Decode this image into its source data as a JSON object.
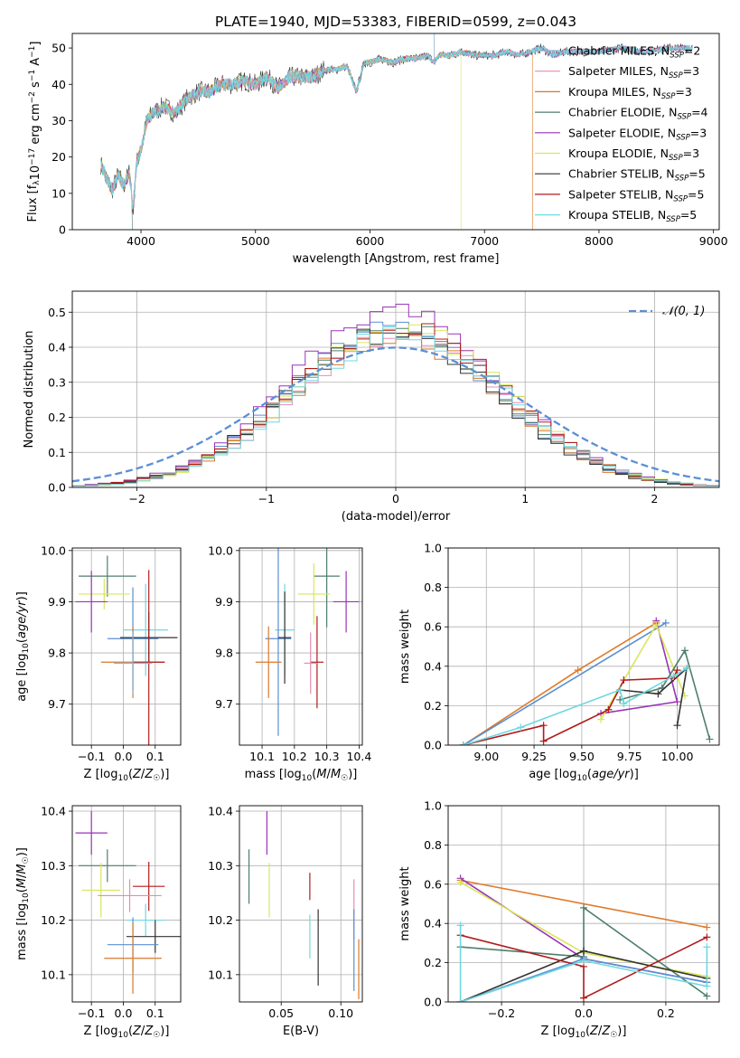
{
  "figure": {
    "title": "PLATE=1940, MJD=53383, FIBERID=0599, z=0.043"
  },
  "colors": {
    "Chabrier MILES": "#8ab0d0",
    "Salpeter MILES": "#e58cb2",
    "Kroupa MILES": "#d9782a",
    "Chabrier ELODIE": "#4f7f6c",
    "Salpeter ELODIE": "#9a33b5",
    "Kroupa ELODIE": "#d9e65a",
    "Chabrier STELIB": "#333333",
    "Salpeter STELIB": "#b01c1c",
    "Kroupa STELIB": "#6fd8e0",
    "Kroupa MILES line": "#e07a2a",
    "Chabrier MILES alt": "#5a8fd0",
    "gaussian": "#5b8fd6"
  },
  "chart_data": [
    {
      "id": "spectrum",
      "type": "line",
      "xlabel": "wavelength [Angstrom, rest frame]",
      "ylabel": "Flux [f_λ 10^-17 erg cm^-2 s^-1 A^-1]",
      "xlim": [
        3400,
        9050
      ],
      "ylim": [
        0,
        54
      ],
      "xticks": [
        4000,
        5000,
        6000,
        7000,
        8000,
        9000
      ],
      "yticks": [
        0,
        10,
        20,
        30,
        40,
        50
      ],
      "grid": false,
      "legend_position": "right",
      "legend": [
        {
          "label": "Chabrier MILES, N_SSP=2",
          "color_key": "Chabrier MILES"
        },
        {
          "label": "Salpeter MILES, N_SSP=3",
          "color_key": "Salpeter MILES"
        },
        {
          "label": "Kroupa MILES, N_SSP=3",
          "color_key": "Kroupa MILES"
        },
        {
          "label": "Chabrier ELODIE, N_SSP=4",
          "color_key": "Chabrier ELODIE"
        },
        {
          "label": "Salpeter ELODIE, N_SSP=3",
          "color_key": "Salpeter ELODIE"
        },
        {
          "label": "Kroupa ELODIE, N_SSP=3",
          "color_key": "Kroupa ELODIE"
        },
        {
          "label": "Chabrier STELIB, N_SSP=5",
          "color_key": "Chabrier STELIB"
        },
        {
          "label": "Salpeter STELIB, N_SSP=5",
          "color_key": "Salpeter STELIB"
        },
        {
          "label": "Kroupa STELIB, N_SSP=5",
          "color_key": "Kroupa STELIB"
        }
      ],
      "continuum": [
        [
          3650,
          18
        ],
        [
          3700,
          14
        ],
        [
          3750,
          11
        ],
        [
          3800,
          15
        ],
        [
          3850,
          12
        ],
        [
          3900,
          16
        ],
        [
          3930,
          5
        ],
        [
          3960,
          18
        ],
        [
          4000,
          22
        ],
        [
          4050,
          30
        ],
        [
          4100,
          32
        ],
        [
          4200,
          34
        ],
        [
          4300,
          32
        ],
        [
          4400,
          36
        ],
        [
          4500,
          38
        ],
        [
          4600,
          38
        ],
        [
          4700,
          40
        ],
        [
          4800,
          40
        ],
        [
          4900,
          41
        ],
        [
          5000,
          40
        ],
        [
          5100,
          42
        ],
        [
          5200,
          39
        ],
        [
          5300,
          42
        ],
        [
          5400,
          42
        ],
        [
          5500,
          42
        ],
        [
          5600,
          44
        ],
        [
          5700,
          44
        ],
        [
          5800,
          45
        ],
        [
          5880,
          38
        ],
        [
          5950,
          46
        ],
        [
          6000,
          46
        ],
        [
          6100,
          47
        ],
        [
          6200,
          46
        ],
        [
          6300,
          47
        ],
        [
          6400,
          47
        ],
        [
          6500,
          48
        ],
        [
          6560,
          46
        ],
        [
          6600,
          48
        ],
        [
          6700,
          48
        ],
        [
          6800,
          49
        ],
        [
          6900,
          48
        ],
        [
          7000,
          48
        ],
        [
          7100,
          48
        ],
        [
          7200,
          49
        ],
        [
          7300,
          48
        ],
        [
          7400,
          49
        ],
        [
          7500,
          50
        ],
        [
          7600,
          48
        ],
        [
          7700,
          49
        ],
        [
          7800,
          49
        ],
        [
          7900,
          49
        ],
        [
          8000,
          49
        ],
        [
          8200,
          50
        ],
        [
          8400,
          49
        ],
        [
          8600,
          50
        ],
        [
          8800,
          50
        ]
      ],
      "truncations": [
        {
          "color_key": "Chabrier ELODIE",
          "x": 3925
        },
        {
          "color_key": "Kroupa ELODIE",
          "x": 6795
        },
        {
          "color_key": "Kroupa MILES",
          "x": 7420
        }
      ]
    },
    {
      "id": "residual-histogram",
      "type": "histogram",
      "xlabel": "(data-model)/error",
      "ylabel": "Normed distribution",
      "xlim": [
        -2.5,
        2.5
      ],
      "ylim": [
        0,
        0.56
      ],
      "xticks": [
        -2,
        -1,
        0,
        1,
        2
      ],
      "yticks": [
        0.0,
        0.1,
        0.2,
        0.3,
        0.4,
        0.5
      ],
      "grid": true,
      "legend_position": "upper right",
      "legend": [
        {
          "label": "𝒩(0, 1)",
          "color_key": "gaussian",
          "style": "dashed"
        }
      ],
      "bin_width": 0.1,
      "series": [
        {
          "color_key": "Chabrier MILES alt",
          "peak": 0.47,
          "offset": -0.02
        },
        {
          "color_key": "Salpeter MILES",
          "peak": 0.46,
          "offset": 0.03
        },
        {
          "color_key": "Kroupa MILES",
          "peak": 0.45,
          "offset": -0.01
        },
        {
          "color_key": "Chabrier ELODIE",
          "peak": 0.47,
          "offset": 0.01
        },
        {
          "color_key": "Salpeter ELODIE",
          "peak": 0.53,
          "offset": 0.0
        },
        {
          "color_key": "Kroupa ELODIE",
          "peak": 0.48,
          "offset": 0.04
        },
        {
          "color_key": "Chabrier STELIB",
          "peak": 0.46,
          "offset": -0.03
        },
        {
          "color_key": "Salpeter STELIB",
          "peak": 0.49,
          "offset": 0.02
        },
        {
          "color_key": "Kroupa STELIB",
          "peak": 0.46,
          "offset": 0.05
        }
      ]
    },
    {
      "id": "age-vs-Z",
      "type": "errorbar",
      "xlabel": "Z [log10(Z/Z☉)]",
      "ylabel": "age  [log10(age/yr)]",
      "xlim": [
        -0.16,
        0.18
      ],
      "ylim": [
        9.62,
        10.005
      ],
      "xticks": [
        -0.1,
        0.0,
        0.1
      ],
      "yticks": [
        9.7,
        9.8,
        9.9,
        10.0
      ],
      "grid": true,
      "points": [
        {
          "color_key": "Chabrier ELODIE",
          "x": -0.05,
          "xerr": 0.09,
          "y": 9.95,
          "yerr": 0.04
        },
        {
          "color_key": "Kroupa ELODIE",
          "x": -0.06,
          "xerr": 0.08,
          "y": 9.915,
          "yerr": 0.03
        },
        {
          "color_key": "Salpeter ELODIE",
          "x": -0.1,
          "xerr": 0.05,
          "y": 9.9,
          "yerr": 0.06
        },
        {
          "color_key": "Kroupa STELIB",
          "x": 0.07,
          "xerr": 0.07,
          "y": 9.845,
          "yerr": 0.09
        },
        {
          "color_key": "Chabrier MILES alt",
          "x": 0.03,
          "xerr": 0.08,
          "y": 9.828,
          "yerr": 0.1
        },
        {
          "color_key": "Chabrier STELIB",
          "x": 0.08,
          "xerr": 0.09,
          "y": 9.83,
          "yerr": 0.05
        },
        {
          "color_key": "Kroupa MILES",
          "x": 0.03,
          "xerr": 0.1,
          "y": 9.782,
          "yerr": 0.07
        },
        {
          "color_key": "Salpeter STELIB",
          "x": 0.08,
          "xerr": 0.05,
          "y": 9.782,
          "yerr": 0.18
        },
        {
          "color_key": "Chabrier MILES",
          "x": 0.03,
          "xerr": 0.06,
          "y": 9.78,
          "yerr": 0.06
        }
      ]
    },
    {
      "id": "age-vs-mass",
      "type": "errorbar",
      "xlabel": "mass [log10(M/M☉)]",
      "ylabel": "",
      "xlim": [
        10.03,
        10.41
      ],
      "ylim": [
        9.62,
        10.005
      ],
      "xticks": [
        10.1,
        10.2,
        10.3,
        10.4
      ],
      "yticks": [
        9.7,
        9.8,
        9.9,
        10.0
      ],
      "grid": true,
      "points": [
        {
          "color_key": "Chabrier ELODIE",
          "x": 10.3,
          "xerr": 0.04,
          "y": 9.95,
          "yerr": 0.1
        },
        {
          "color_key": "Kroupa ELODIE",
          "x": 10.26,
          "xerr": 0.05,
          "y": 9.915,
          "yerr": 0.06
        },
        {
          "color_key": "Salpeter ELODIE",
          "x": 10.36,
          "xerr": 0.04,
          "y": 9.9,
          "yerr": 0.06
        },
        {
          "color_key": "Kroupa STELIB",
          "x": 10.17,
          "xerr": 0.03,
          "y": 9.845,
          "yerr": 0.09
        },
        {
          "color_key": "Chabrier MILES alt",
          "x": 10.15,
          "xerr": 0.04,
          "y": 9.828,
          "yerr": 0.19
        },
        {
          "color_key": "Chabrier STELIB",
          "x": 10.17,
          "xerr": 0.02,
          "y": 9.83,
          "yerr": 0.09
        },
        {
          "color_key": "Kroupa MILES",
          "x": 10.12,
          "xerr": 0.04,
          "y": 9.782,
          "yerr": 0.07
        },
        {
          "color_key": "Salpeter STELIB",
          "x": 10.27,
          "xerr": 0.02,
          "y": 9.782,
          "yerr": 0.09
        },
        {
          "color_key": "Salpeter MILES",
          "x": 10.25,
          "xerr": 0.02,
          "y": 9.78,
          "yerr": 0.06
        }
      ]
    },
    {
      "id": "massweight-vs-age",
      "type": "line",
      "xlabel": "age  [log10(age/yr)]",
      "ylabel": "mass weight",
      "xlim": [
        8.8,
        10.22
      ],
      "ylim": [
        0.0,
        1.0
      ],
      "xticks": [
        9.0,
        9.25,
        9.5,
        9.75,
        10.0
      ],
      "yticks": [
        0.0,
        0.2,
        0.4,
        0.6,
        0.8,
        1.0
      ],
      "grid": true,
      "series": [
        {
          "color_key": "Kroupa MILES line",
          "x": [
            8.88,
            9.48,
            9.89
          ],
          "y": [
            0.0,
            0.38,
            0.62
          ]
        },
        {
          "color_key": "Chabrier MILES alt",
          "x": [
            8.88,
            9.94
          ],
          "y": [
            0.0,
            0.62
          ]
        },
        {
          "color_key": "Salpeter ELODIE",
          "x": [
            9.89,
            10.0,
            9.6
          ],
          "y": [
            0.63,
            0.22,
            0.16
          ]
        },
        {
          "color_key": "Kroupa ELODIE",
          "x": [
            9.6,
            9.89,
            10.04
          ],
          "y": [
            0.13,
            0.61,
            0.25
          ]
        },
        {
          "color_key": "Chabrier ELODIE",
          "x": [
            9.7,
            9.92,
            10.04,
            10.17
          ],
          "y": [
            0.23,
            0.29,
            0.48,
            0.03
          ]
        },
        {
          "color_key": "Chabrier STELIB",
          "x": [
            9.7,
            9.9,
            10.05,
            10.0
          ],
          "y": [
            0.28,
            0.26,
            0.39,
            0.1
          ]
        },
        {
          "color_key": "Salpeter STELIB",
          "x": [
            8.88,
            9.3,
            9.3,
            9.64,
            9.72,
            9.98,
            10.0
          ],
          "y": [
            0.0,
            0.1,
            0.02,
            0.18,
            0.33,
            0.34,
            0.38
          ]
        },
        {
          "color_key": "Kroupa STELIB",
          "x": [
            8.88,
            9.18,
            9.7,
            9.72,
            9.98,
            10.05
          ],
          "y": [
            0.0,
            0.09,
            0.28,
            0.21,
            0.35,
            0.39
          ]
        }
      ]
    },
    {
      "id": "mass-vs-Z",
      "type": "errorbar",
      "xlabel": "Z [log10(Z/Z☉)]",
      "ylabel": "mass [log10(M/M☉)]",
      "xlim": [
        -0.16,
        0.18
      ],
      "ylim": [
        10.05,
        10.41
      ],
      "xticks": [
        -0.1,
        0.0,
        0.1
      ],
      "yticks": [
        10.1,
        10.2,
        10.3,
        10.4
      ],
      "grid": true,
      "points": [
        {
          "color_key": "Salpeter ELODIE",
          "x": -0.1,
          "xerr": 0.05,
          "y": 10.36,
          "yerr": 0.04
        },
        {
          "color_key": "Chabrier ELODIE",
          "x": -0.05,
          "xerr": 0.09,
          "y": 10.3,
          "yerr": 0.03
        },
        {
          "color_key": "Salpeter STELIB",
          "x": 0.08,
          "xerr": 0.05,
          "y": 10.262,
          "yerr": 0.045
        },
        {
          "color_key": "Kroupa ELODIE",
          "x": -0.07,
          "xerr": 0.06,
          "y": 10.255,
          "yerr": 0.05
        },
        {
          "color_key": "Salpeter MILES",
          "x": 0.02,
          "xerr": 0.1,
          "y": 10.245,
          "yerr": 0.03
        },
        {
          "color_key": "Kroupa STELIB",
          "x": 0.07,
          "xerr": 0.06,
          "y": 10.2,
          "yerr": 0.03
        },
        {
          "color_key": "Chabrier STELIB",
          "x": 0.1,
          "xerr": 0.09,
          "y": 10.17,
          "yerr": 0.03
        },
        {
          "color_key": "Chabrier MILES alt",
          "x": 0.03,
          "xerr": 0.08,
          "y": 10.155,
          "yerr": 0.05
        },
        {
          "color_key": "Kroupa MILES",
          "x": 0.03,
          "xerr": 0.09,
          "y": 10.13,
          "yerr": 0.065
        }
      ]
    },
    {
      "id": "mass-vs-EBV",
      "type": "errorbar",
      "xlabel": "E(B-V)",
      "ylabel": "",
      "xlim": [
        0.015,
        0.118
      ],
      "ylim": [
        10.05,
        10.41
      ],
      "xticks": [
        0.05,
        0.1
      ],
      "yticks": [
        10.1,
        10.2,
        10.3,
        10.4
      ],
      "grid": true,
      "points": [
        {
          "color_key": "Salpeter ELODIE",
          "x": 0.038,
          "xerr": 0.0,
          "y": 10.36,
          "yerr": 0.04
        },
        {
          "color_key": "Chabrier ELODIE",
          "x": 0.023,
          "xerr": 0.0,
          "y": 10.28,
          "yerr": 0.05
        },
        {
          "color_key": "Kroupa ELODIE",
          "x": 0.04,
          "xerr": 0.0,
          "y": 10.255,
          "yerr": 0.05
        },
        {
          "color_key": "Salpeter STELIB",
          "x": 0.074,
          "xerr": 0.0,
          "y": 10.262,
          "yerr": 0.025
        },
        {
          "color_key": "Salpeter MILES",
          "x": 0.111,
          "xerr": 0.0,
          "y": 10.22,
          "yerr": 0.055
        },
        {
          "color_key": "Kroupa STELIB",
          "x": 0.074,
          "xerr": 0.0,
          "y": 10.17,
          "yerr": 0.04
        },
        {
          "color_key": "Chabrier STELIB",
          "x": 0.081,
          "xerr": 0.0,
          "y": 10.15,
          "yerr": 0.07
        },
        {
          "color_key": "Chabrier MILES alt",
          "x": 0.111,
          "xerr": 0.0,
          "y": 10.145,
          "yerr": 0.075
        },
        {
          "color_key": "Kroupa MILES",
          "x": 0.115,
          "xerr": 0.0,
          "y": 10.11,
          "yerr": 0.055
        }
      ]
    },
    {
      "id": "massweight-vs-Z",
      "type": "line",
      "xlabel": "Z [log10(Z/Z☉)]",
      "ylabel": "mass weight",
      "xlim": [
        -0.33,
        0.33
      ],
      "ylim": [
        0.0,
        1.0
      ],
      "xticks": [
        -0.2,
        0.0,
        0.2
      ],
      "yticks": [
        0.0,
        0.2,
        0.4,
        0.6,
        0.8,
        1.0
      ],
      "grid": true,
      "series": [
        {
          "color_key": "Kroupa MILES line",
          "x": [
            -0.3,
            0.3
          ],
          "y": [
            0.62,
            0.38
          ]
        },
        {
          "color_key": "Salpeter ELODIE",
          "x": [
            -0.3,
            0.0,
            0.3
          ],
          "y": [
            0.63,
            0.22,
            0.1
          ]
        },
        {
          "color_key": "Kroupa ELODIE",
          "x": [
            -0.3,
            0.0,
            0.3
          ],
          "y": [
            0.61,
            0.25,
            0.13
          ]
        },
        {
          "color_key": "Chabrier ELODIE",
          "x": [
            -0.3,
            0.0,
            0.0,
            0.3
          ],
          "y": [
            0.28,
            0.23,
            0.48,
            0.03
          ]
        },
        {
          "color_key": "Chabrier MILES alt",
          "x": [
            -0.3,
            0.0,
            0.3
          ],
          "y": [
            0.0,
            0.22,
            0.1
          ]
        },
        {
          "color_key": "Chabrier STELIB",
          "x": [
            -0.3,
            0.0,
            0.3
          ],
          "y": [
            0.0,
            0.26,
            0.12
          ]
        },
        {
          "color_key": "Salpeter STELIB",
          "x": [
            -0.3,
            0.0,
            0.0,
            0.3
          ],
          "y": [
            0.34,
            0.18,
            0.02,
            0.33
          ]
        },
        {
          "color_key": "Kroupa STELIB",
          "x": [
            -0.3,
            -0.3,
            0.0,
            0.3,
            0.3
          ],
          "y": [
            0.39,
            0.0,
            0.21,
            0.08,
            0.28
          ]
        }
      ]
    }
  ]
}
